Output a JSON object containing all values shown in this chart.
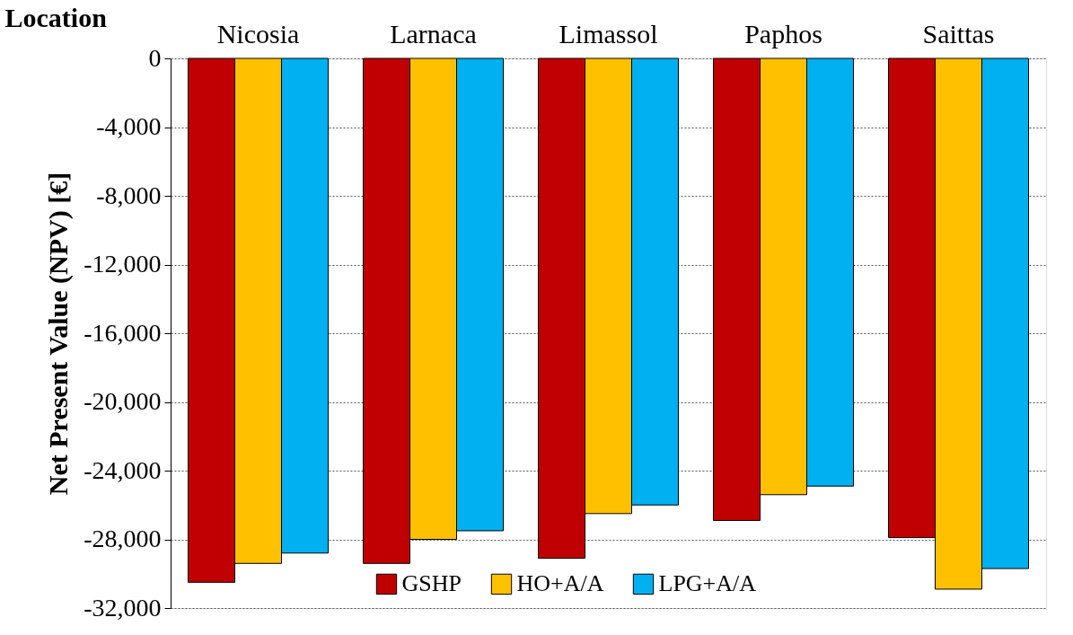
{
  "chart_data": {
    "type": "bar",
    "xlabel": "Location",
    "ylabel": "Net Present Value (NPV) [€]",
    "categories": [
      "Nicosia",
      "Larnaca",
      "Limassol",
      "Paphos",
      "Saittas"
    ],
    "series": [
      {
        "name": "GSHP",
        "color": "#c00000",
        "values": [
          -30500,
          -29400,
          -29100,
          -26900,
          -27900
        ]
      },
      {
        "name": "HO+A/A",
        "color": "#ffc000",
        "values": [
          -29400,
          -28000,
          -26500,
          -25400,
          -30900
        ]
      },
      {
        "name": "LPG+A/A",
        "color": "#00b0f0",
        "values": [
          -28800,
          -27500,
          -26000,
          -24900,
          -29700
        ]
      }
    ],
    "ylim": [
      -32000,
      0
    ],
    "yticks": [
      {
        "value": -32000,
        "label": "-32,000"
      },
      {
        "value": -28000,
        "label": "-28,000"
      },
      {
        "value": -24000,
        "label": "-24,000"
      },
      {
        "value": -20000,
        "label": "-20,000"
      },
      {
        "value": -16000,
        "label": "-16,000"
      },
      {
        "value": -12000,
        "label": "-12,000"
      },
      {
        "value": -8000,
        "label": "-8,000"
      },
      {
        "value": -4000,
        "label": "-4,000"
      },
      0
    ],
    "grid": "y",
    "legend": "bottom"
  }
}
